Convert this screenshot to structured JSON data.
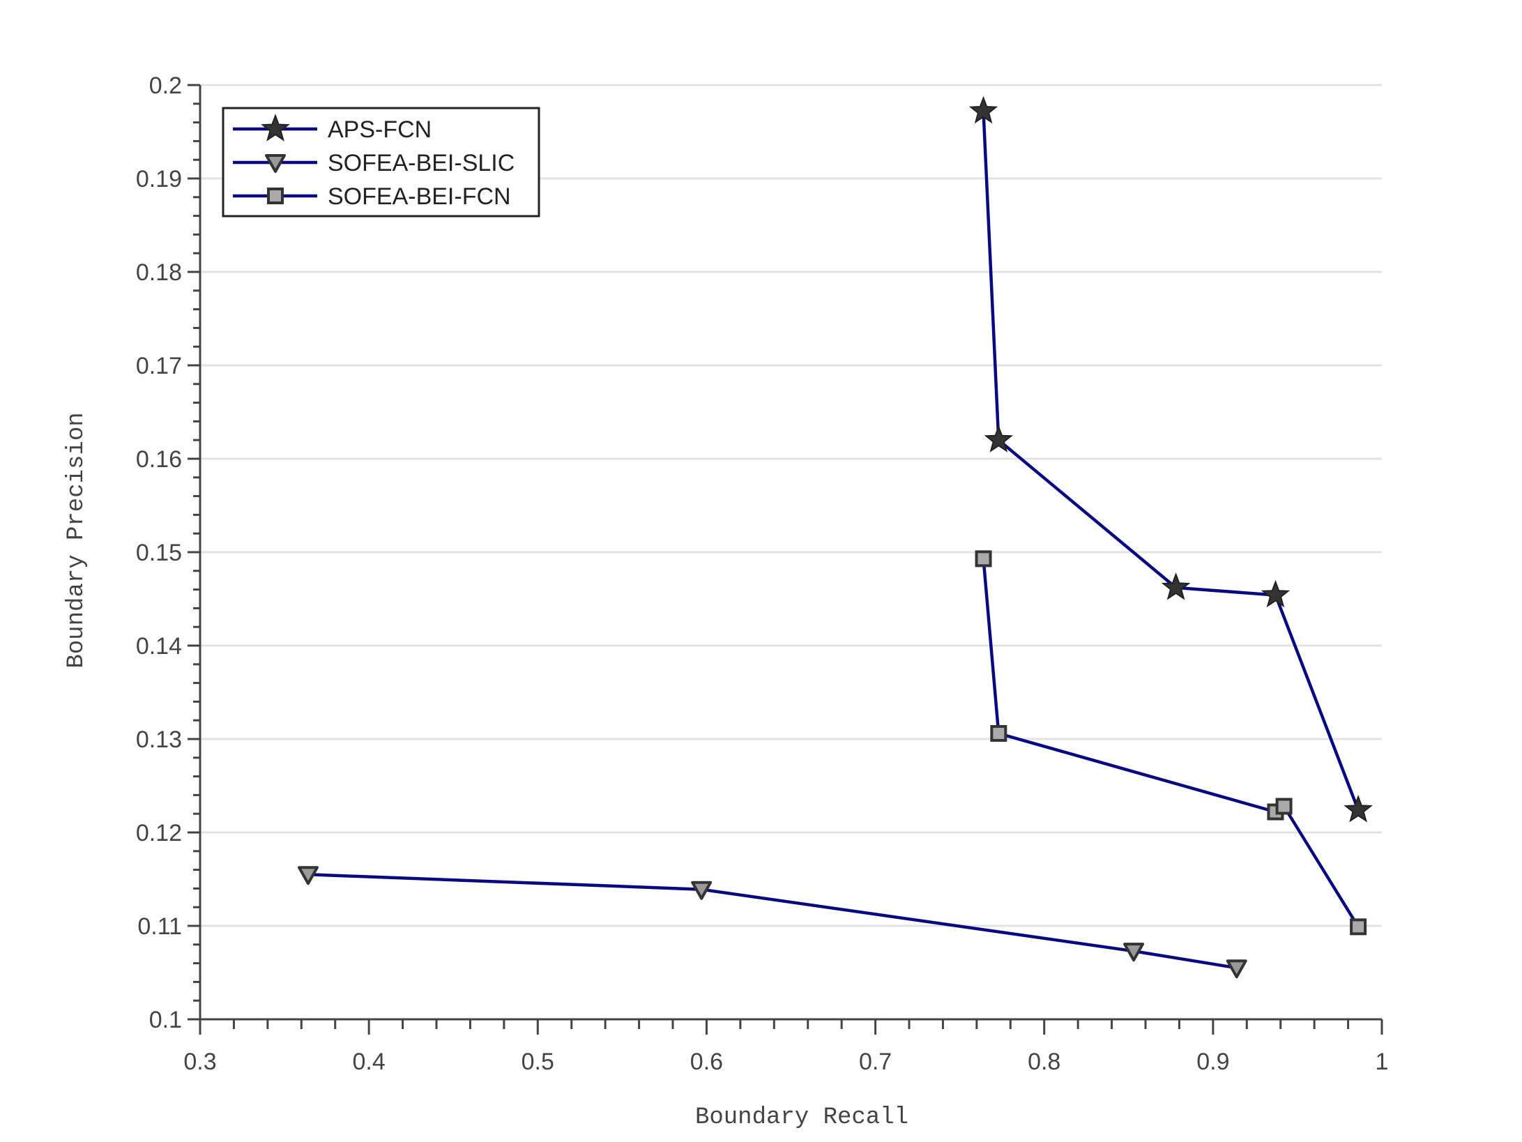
{
  "chart_data": {
    "type": "line",
    "xlabel": "Boundary Recall",
    "ylabel": "Boundary Precision",
    "xlim": [
      0.3,
      1.0
    ],
    "ylim": [
      0.1,
      0.2
    ],
    "x_ticks": [
      0.3,
      0.4,
      0.5,
      0.6,
      0.7,
      0.8,
      0.9,
      1.0
    ],
    "x_tick_labels": [
      "0.3",
      "0.4",
      "0.5",
      "0.6",
      "0.7",
      "0.8",
      "0.9",
      "1"
    ],
    "y_ticks": [
      0.1,
      0.11,
      0.12,
      0.13,
      0.14,
      0.15,
      0.16,
      0.17,
      0.18,
      0.19,
      0.2
    ],
    "y_tick_labels": [
      "0.1",
      "0.11",
      "0.12",
      "0.13",
      "0.14",
      "0.15",
      "0.16",
      "0.17",
      "0.18",
      "0.19",
      "0.2"
    ],
    "grid": "horizontal",
    "legend_position": "top-left",
    "line_color": "#0a0a80",
    "series": [
      {
        "name": "APS-FCN",
        "marker": "star",
        "marker_color": "#333333",
        "points": [
          [
            0.764,
            0.1972
          ],
          [
            0.773,
            0.162
          ],
          [
            0.878,
            0.1462
          ],
          [
            0.937,
            0.1454
          ],
          [
            0.986,
            0.1224
          ]
        ]
      },
      {
        "name": "SOFEA-BEI-SLIC",
        "marker": "triangle-down",
        "marker_color": "#999999",
        "points": [
          [
            0.364,
            0.1155
          ],
          [
            0.597,
            0.1139
          ],
          [
            0.853,
            0.1073
          ],
          [
            0.914,
            0.1055
          ]
        ]
      },
      {
        "name": "SOFEA-BEI-FCN",
        "marker": "square",
        "marker_color": "#aaaaaa",
        "points": [
          [
            0.764,
            0.1493
          ],
          [
            0.773,
            0.1306
          ],
          [
            0.937,
            0.1222
          ],
          [
            0.942,
            0.1228
          ],
          [
            0.986,
            0.1099
          ]
        ]
      }
    ]
  }
}
